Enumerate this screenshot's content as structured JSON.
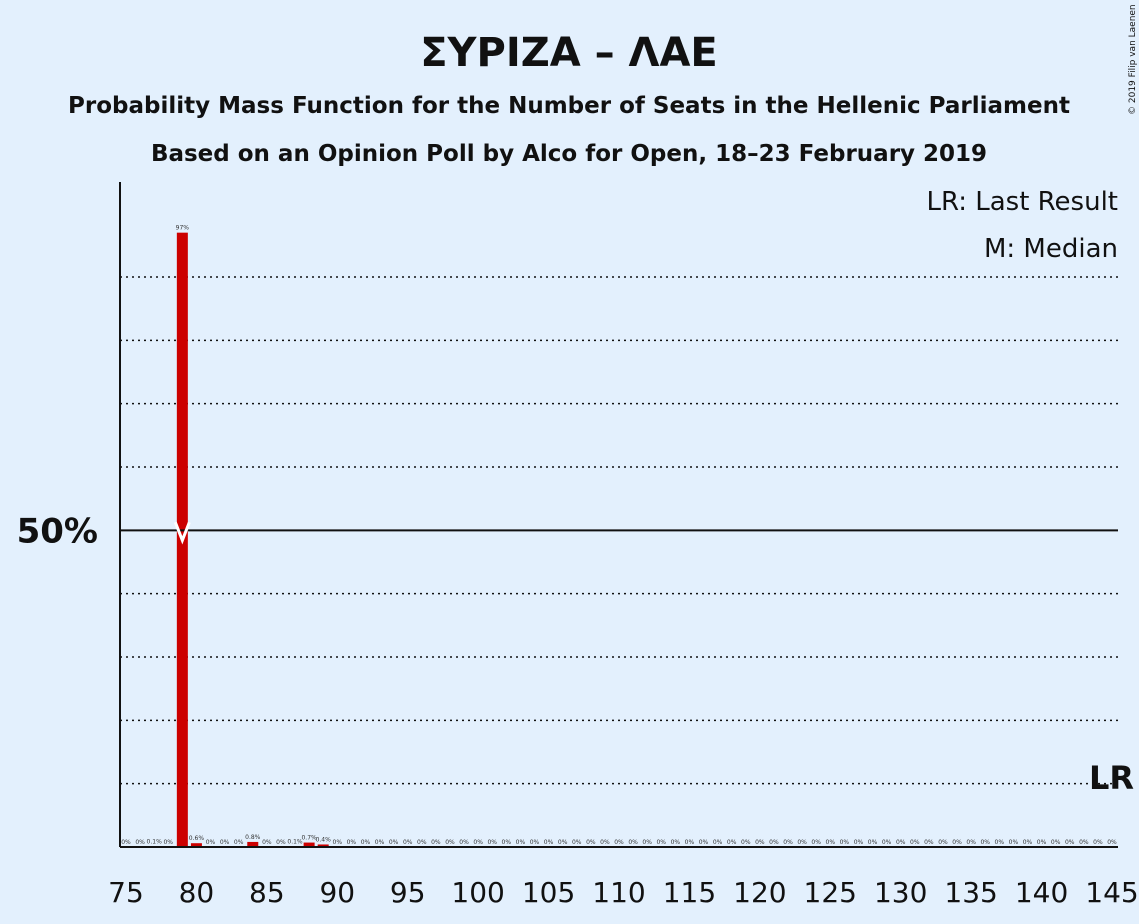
{
  "chart_data": {
    "type": "bar",
    "title": "ΣΥΡΙΖΑ – ΛΑΕ",
    "subtitle": "Probability Mass Function for the Number of Seats in the Hellenic Parliament",
    "subtitle2": "Based on an Opinion Poll by Alco for Open, 18–23 February 2019",
    "copyright": "© 2019 Filip van Laenen",
    "legend": {
      "lr": "LR: Last Result",
      "median": "M: Median",
      "placement": "top-right"
    },
    "x_range": [
      75,
      145
    ],
    "x_ticks": [
      75,
      80,
      85,
      90,
      95,
      100,
      105,
      110,
      115,
      120,
      125,
      130,
      135,
      140,
      145
    ],
    "ylim": [
      0,
      105
    ],
    "y_major": {
      "value": 50,
      "label": "50%"
    },
    "y_gridlines": [
      10,
      20,
      30,
      40,
      60,
      70,
      80,
      90
    ],
    "bar_color": "#cc0000",
    "median_seat": 79,
    "last_result_seat": 145,
    "last_result_label": "LR",
    "bars": [
      {
        "x": 75,
        "value": 0,
        "label": "0%"
      },
      {
        "x": 76,
        "value": 0,
        "label": "0%"
      },
      {
        "x": 77,
        "value": 0.1,
        "label": "0.1%"
      },
      {
        "x": 78,
        "value": 0,
        "label": "0%"
      },
      {
        "x": 79,
        "value": 97,
        "label": "97%"
      },
      {
        "x": 80,
        "value": 0.6,
        "label": "0.6%"
      },
      {
        "x": 81,
        "value": 0,
        "label": "0%"
      },
      {
        "x": 82,
        "value": 0,
        "label": "0%"
      },
      {
        "x": 83,
        "value": 0,
        "label": "0%"
      },
      {
        "x": 84,
        "value": 0.8,
        "label": "0.8%"
      },
      {
        "x": 85,
        "value": 0,
        "label": "0%"
      },
      {
        "x": 86,
        "value": 0,
        "label": "0%"
      },
      {
        "x": 87,
        "value": 0.1,
        "label": "0.1%"
      },
      {
        "x": 88,
        "value": 0.7,
        "label": "0.7%"
      },
      {
        "x": 89,
        "value": 0.4,
        "label": "0.4%"
      },
      {
        "x": 90,
        "value": 0,
        "label": "0%"
      },
      {
        "x": 91,
        "value": 0,
        "label": "0%"
      },
      {
        "x": 92,
        "value": 0,
        "label": "0%"
      },
      {
        "x": 93,
        "value": 0,
        "label": "0%"
      },
      {
        "x": 94,
        "value": 0,
        "label": "0%"
      },
      {
        "x": 95,
        "value": 0,
        "label": "0%"
      },
      {
        "x": 96,
        "value": 0,
        "label": "0%"
      },
      {
        "x": 97,
        "value": 0,
        "label": "0%"
      },
      {
        "x": 98,
        "value": 0,
        "label": "0%"
      },
      {
        "x": 99,
        "value": 0,
        "label": "0%"
      },
      {
        "x": 100,
        "value": 0,
        "label": "0%"
      },
      {
        "x": 101,
        "value": 0,
        "label": "0%"
      },
      {
        "x": 102,
        "value": 0,
        "label": "0%"
      },
      {
        "x": 103,
        "value": 0,
        "label": "0%"
      },
      {
        "x": 104,
        "value": 0,
        "label": "0%"
      },
      {
        "x": 105,
        "value": 0,
        "label": "0%"
      },
      {
        "x": 106,
        "value": 0,
        "label": "0%"
      },
      {
        "x": 107,
        "value": 0,
        "label": "0%"
      },
      {
        "x": 108,
        "value": 0,
        "label": "0%"
      },
      {
        "x": 109,
        "value": 0,
        "label": "0%"
      },
      {
        "x": 110,
        "value": 0,
        "label": "0%"
      },
      {
        "x": 111,
        "value": 0,
        "label": "0%"
      },
      {
        "x": 112,
        "value": 0,
        "label": "0%"
      },
      {
        "x": 113,
        "value": 0,
        "label": "0%"
      },
      {
        "x": 114,
        "value": 0,
        "label": "0%"
      },
      {
        "x": 115,
        "value": 0,
        "label": "0%"
      },
      {
        "x": 116,
        "value": 0,
        "label": "0%"
      },
      {
        "x": 117,
        "value": 0,
        "label": "0%"
      },
      {
        "x": 118,
        "value": 0,
        "label": "0%"
      },
      {
        "x": 119,
        "value": 0,
        "label": "0%"
      },
      {
        "x": 120,
        "value": 0,
        "label": "0%"
      },
      {
        "x": 121,
        "value": 0,
        "label": "0%"
      },
      {
        "x": 122,
        "value": 0,
        "label": "0%"
      },
      {
        "x": 123,
        "value": 0,
        "label": "0%"
      },
      {
        "x": 124,
        "value": 0,
        "label": "0%"
      },
      {
        "x": 125,
        "value": 0,
        "label": "0%"
      },
      {
        "x": 126,
        "value": 0,
        "label": "0%"
      },
      {
        "x": 127,
        "value": 0,
        "label": "0%"
      },
      {
        "x": 128,
        "value": 0,
        "label": "0%"
      },
      {
        "x": 129,
        "value": 0,
        "label": "0%"
      },
      {
        "x": 130,
        "value": 0,
        "label": "0%"
      },
      {
        "x": 131,
        "value": 0,
        "label": "0%"
      },
      {
        "x": 132,
        "value": 0,
        "label": "0%"
      },
      {
        "x": 133,
        "value": 0,
        "label": "0%"
      },
      {
        "x": 134,
        "value": 0,
        "label": "0%"
      },
      {
        "x": 135,
        "value": 0,
        "label": "0%"
      },
      {
        "x": 136,
        "value": 0,
        "label": "0%"
      },
      {
        "x": 137,
        "value": 0,
        "label": "0%"
      },
      {
        "x": 138,
        "value": 0,
        "label": "0%"
      },
      {
        "x": 139,
        "value": 0,
        "label": "0%"
      },
      {
        "x": 140,
        "value": 0,
        "label": "0%"
      },
      {
        "x": 141,
        "value": 0,
        "label": "0%"
      },
      {
        "x": 142,
        "value": 0,
        "label": "0%"
      },
      {
        "x": 143,
        "value": 0,
        "label": "0%"
      },
      {
        "x": 144,
        "value": 0,
        "label": "0%"
      },
      {
        "x": 145,
        "value": 0,
        "label": "0%"
      }
    ]
  }
}
